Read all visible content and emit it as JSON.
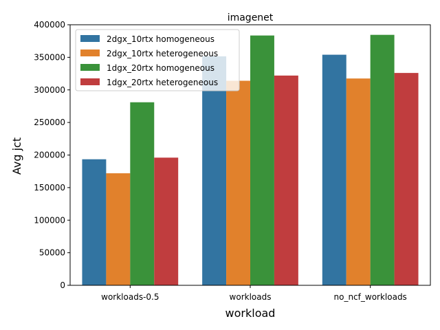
{
  "chart_data": {
    "type": "bar",
    "title": "imagenet",
    "xlabel": "workload",
    "ylabel": "Avg jct",
    "categories": [
      "workloads-0.5",
      "workloads",
      "no_ncf_workloads"
    ],
    "ylim": [
      0,
      400000
    ],
    "yticks": [
      0,
      50000,
      100000,
      150000,
      200000,
      250000,
      300000,
      350000,
      400000
    ],
    "ytick_labels": [
      "0",
      "50000",
      "100000",
      "150000",
      "200000",
      "250000",
      "300000",
      "350000",
      "400000"
    ],
    "grid": false,
    "legend_position": "top-left",
    "series": [
      {
        "name": "2dgx_10rtx homogeneous",
        "color": "#3274a1",
        "values": [
          193500,
          351500,
          354000
        ]
      },
      {
        "name": "2dgx_10rtx heterogeneous",
        "color": "#e1812c",
        "values": [
          172000,
          314000,
          317500
        ]
      },
      {
        "name": "1dgx_20rtx homogeneous",
        "color": "#3a923a",
        "values": [
          281000,
          383500,
          384500
        ]
      },
      {
        "name": "1dgx_20rtx heterogeneous",
        "color": "#c03d3e",
        "values": [
          196000,
          322000,
          326000
        ]
      }
    ]
  }
}
